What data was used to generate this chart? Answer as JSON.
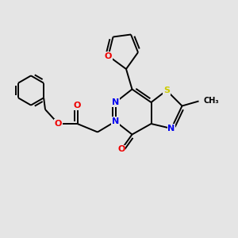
{
  "bg_color": "#e5e5e5",
  "bond_color": "#000000",
  "bond_width": 1.4,
  "atom_colors": {
    "N": "#0000ee",
    "O": "#ee0000",
    "S": "#cccc00",
    "C": "#000000"
  },
  "font_size": 8.0,
  "small_font": 7.0
}
